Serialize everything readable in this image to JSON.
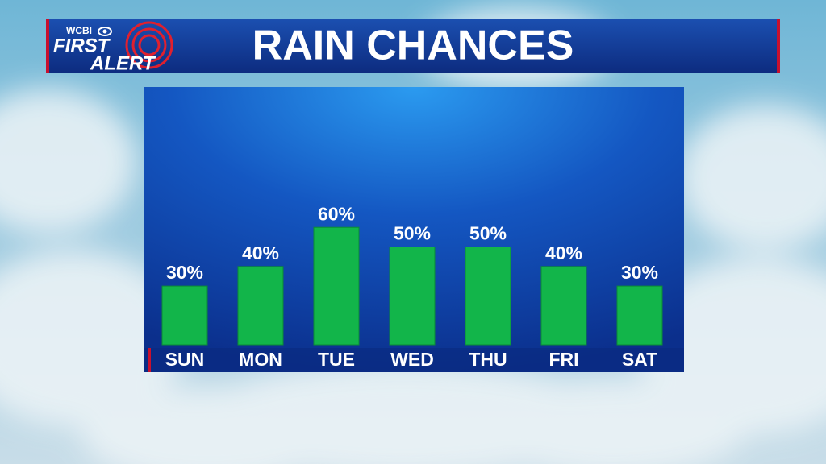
{
  "header": {
    "station": "WCBI",
    "line1": "FIRST",
    "line2": "ALERT"
  },
  "chart_data": {
    "type": "bar",
    "title": "RAIN CHANCES",
    "categories": [
      "SUN",
      "MON",
      "TUE",
      "WED",
      "THU",
      "FRI",
      "SAT"
    ],
    "values": [
      30,
      40,
      60,
      50,
      50,
      40,
      30
    ],
    "value_labels": [
      "30%",
      "40%",
      "60%",
      "50%",
      "50%",
      "40%",
      "30%"
    ],
    "color": "#12b54a"
  }
}
